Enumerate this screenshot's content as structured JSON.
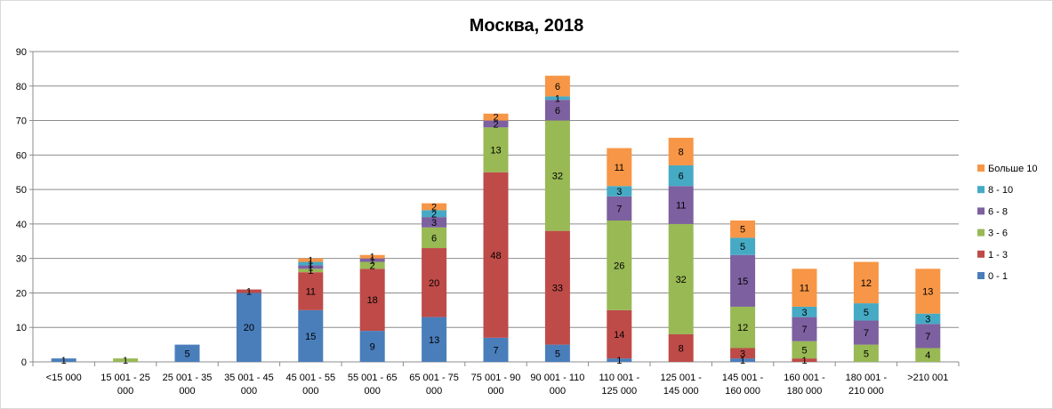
{
  "chart_data": {
    "type": "bar",
    "stacked": true,
    "title": "Москва, 2018",
    "xlabel": "",
    "ylabel": "",
    "ylim": [
      0,
      90
    ],
    "ytick_step": 10,
    "grid": true,
    "legend_position": "right",
    "categories": [
      "<15 000",
      "15 001 - 25 000",
      "25 001 - 35 000",
      "35 001 - 45 000",
      "45 001 - 55 000",
      "55 001 - 65 000",
      "65 001 - 75 000",
      "75 001 - 90 000",
      "90 001 - 110 000",
      "110 001 - 125 000",
      "125 001 - 145 000",
      "145 001 - 160 000",
      "160 001 - 180 000",
      "180 001 - 210 000",
      ">210 001"
    ],
    "category_lines": [
      [
        "<15 000",
        ""
      ],
      [
        "15 001 - 25",
        "000"
      ],
      [
        "25 001 - 35",
        "000"
      ],
      [
        "35 001 - 45",
        "000"
      ],
      [
        "45 001 - 55",
        "000"
      ],
      [
        "55 001 - 65",
        "000"
      ],
      [
        "65 001 - 75",
        "000"
      ],
      [
        "75 001 - 90",
        "000"
      ],
      [
        "90 001 - 110",
        "000"
      ],
      [
        "110 001 -",
        "125 000"
      ],
      [
        "125 001 -",
        "145 000"
      ],
      [
        "145 001 -",
        "160 000"
      ],
      [
        "160 001 -",
        "180 000"
      ],
      [
        "180 001 -",
        "210 000"
      ],
      [
        ">210 001",
        ""
      ]
    ],
    "series": [
      {
        "name": "0 - 1",
        "color": "#4a7ebb",
        "values": [
          1,
          0,
          5,
          20,
          15,
          9,
          13,
          7,
          5,
          1,
          0,
          1,
          0,
          0,
          0
        ]
      },
      {
        "name": "1 - 3",
        "color": "#be4b48",
        "values": [
          0,
          0,
          0,
          1,
          11,
          18,
          20,
          48,
          33,
          14,
          8,
          3,
          1,
          0,
          0
        ]
      },
      {
        "name": "3 - 6",
        "color": "#98b954",
        "values": [
          0,
          1,
          0,
          0,
          1,
          2,
          6,
          13,
          32,
          26,
          32,
          12,
          5,
          5,
          4
        ]
      },
      {
        "name": "6 - 8",
        "color": "#7d60a0",
        "values": [
          0,
          0,
          0,
          0,
          1,
          1,
          3,
          2,
          6,
          7,
          11,
          15,
          7,
          7,
          7
        ]
      },
      {
        "name": "8 - 10",
        "color": "#46aac5",
        "values": [
          0,
          0,
          0,
          0,
          1,
          0,
          2,
          0,
          1,
          3,
          6,
          5,
          3,
          5,
          3
        ]
      },
      {
        "name": "Больше 10",
        "color": "#f79646",
        "values": [
          0,
          0,
          0,
          0,
          1,
          1,
          2,
          2,
          6,
          11,
          8,
          5,
          11,
          12,
          13
        ]
      }
    ]
  }
}
